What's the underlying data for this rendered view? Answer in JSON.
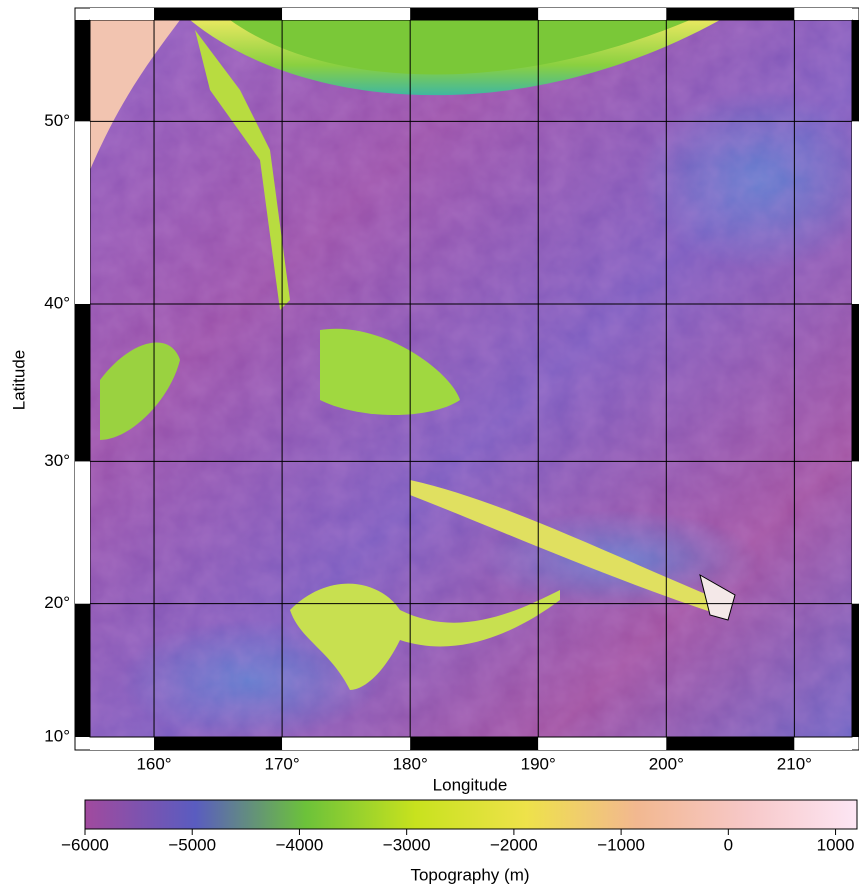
{
  "map": {
    "xlabel": "Longitude",
    "ylabel": "Latitude",
    "lonlim": [
      155,
      214.5
    ],
    "latlim": [
      10,
      54.8
    ],
    "lon_ticks": [
      {
        "value": 160,
        "label": "160°"
      },
      {
        "value": 170,
        "label": "170°"
      },
      {
        "value": 180,
        "label": "180°"
      },
      {
        "value": 190,
        "label": "190°"
      },
      {
        "value": 200,
        "label": "200°"
      },
      {
        "value": 210,
        "label": "210°"
      }
    ],
    "lat_ticks": [
      {
        "value": 10,
        "label": "10°"
      },
      {
        "value": 20,
        "label": "20°"
      },
      {
        "value": 30,
        "label": "30°"
      },
      {
        "value": 40,
        "label": "40°"
      },
      {
        "value": 50,
        "label": "50°"
      }
    ],
    "colorbar": {
      "label": "Topography (m)",
      "range": [
        -6000,
        1200
      ],
      "ticks": [
        {
          "value": -6000,
          "label": "−6000"
        },
        {
          "value": -5000,
          "label": "−5000"
        },
        {
          "value": -4000,
          "label": "−4000"
        },
        {
          "value": -3000,
          "label": "−3000"
        },
        {
          "value": -2000,
          "label": "−2000"
        },
        {
          "value": -1000,
          "label": "−1000"
        },
        {
          "value": 0,
          "label": "0"
        },
        {
          "value": 1000,
          "label": "1000"
        }
      ],
      "colors": [
        "#a14a9e",
        "#5a5cc0",
        "#6cc23a",
        "#c8e21e",
        "#eee24a",
        "#f2b890",
        "#f7c8c8",
        "#fde6f4"
      ]
    }
  }
}
